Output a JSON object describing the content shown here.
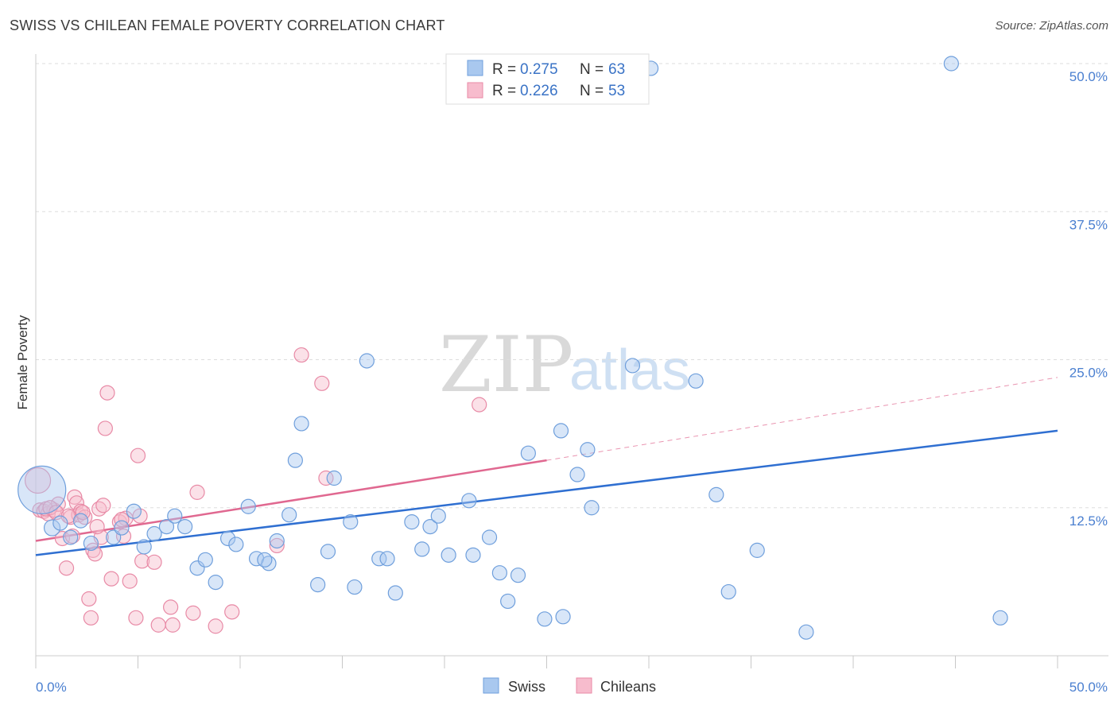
{
  "title": "SWISS VS CHILEAN FEMALE POVERTY CORRELATION CHART",
  "source": "Source: ZipAtlas.com",
  "watermark": {
    "zip": "ZIP",
    "atlas": "atlas"
  },
  "colors": {
    "swiss_fill": "#a9c8ef",
    "swiss_stroke": "#6f9fdc",
    "swiss_line": "#2f6fd1",
    "chilean_fill": "#f7bccd",
    "chilean_stroke": "#e88aa6",
    "chilean_line": "#e06890",
    "tick_label": "#4a7fd0",
    "grid": "#dddddd"
  },
  "legend": {
    "rows": [
      {
        "r_label": "R =",
        "r_value": "0.275",
        "n_label": "N =",
        "n_value": "63"
      },
      {
        "r_label": "R =",
        "r_value": "0.226",
        "n_label": "N =",
        "n_value": "53"
      }
    ],
    "bottom": [
      "Swiss",
      "Chileans"
    ]
  },
  "chart_data": {
    "type": "scatter",
    "title": "SWISS VS CHILEAN FEMALE POVERTY CORRELATION CHART",
    "xlabel": "",
    "ylabel": "Female Poverty",
    "xlim": [
      0,
      50
    ],
    "ylim": [
      0,
      50
    ],
    "x_tick_labels": [
      "0.0%",
      "50.0%"
    ],
    "y_ticks": [
      12.5,
      25.0,
      37.5,
      50.0
    ],
    "y_tick_labels": [
      "12.5%",
      "25.0%",
      "37.5%",
      "50.0%"
    ],
    "grid": true,
    "legend_position": "top-center",
    "series": [
      {
        "name": "Swiss",
        "r": 0.275,
        "n": 63,
        "trend": {
          "x0": 0,
          "y0": 8.5,
          "x1": 50,
          "y1": 19.0
        },
        "points": [
          [
            0.3,
            14.0,
            30
          ],
          [
            0.8,
            10.8,
            10
          ],
          [
            1.2,
            11.2,
            9
          ],
          [
            1.7,
            10.0,
            9
          ],
          [
            2.2,
            11.4,
            9
          ],
          [
            2.7,
            9.5,
            9
          ],
          [
            3.8,
            10.0,
            9
          ],
          [
            4.2,
            10.8,
            9
          ],
          [
            4.8,
            12.2,
            9
          ],
          [
            5.3,
            9.2,
            9
          ],
          [
            5.8,
            10.3,
            9
          ],
          [
            6.4,
            10.9,
            9
          ],
          [
            6.8,
            11.8,
            9
          ],
          [
            7.3,
            10.9,
            9
          ],
          [
            7.9,
            7.4,
            9
          ],
          [
            8.3,
            8.1,
            9
          ],
          [
            8.8,
            6.2,
            9
          ],
          [
            9.4,
            9.9,
            9
          ],
          [
            9.8,
            9.4,
            9
          ],
          [
            10.4,
            12.6,
            9
          ],
          [
            10.8,
            8.2,
            9
          ],
          [
            11.4,
            7.8,
            9
          ],
          [
            11.8,
            9.7,
            9
          ],
          [
            12.4,
            11.9,
            9
          ],
          [
            13.0,
            19.6,
            9
          ],
          [
            12.7,
            16.5,
            9
          ],
          [
            13.8,
            6.0,
            9
          ],
          [
            14.3,
            8.8,
            9
          ],
          [
            14.6,
            15.0,
            9
          ],
          [
            15.4,
            11.3,
            9
          ],
          [
            15.6,
            5.8,
            9
          ],
          [
            16.2,
            24.9,
            9
          ],
          [
            16.8,
            8.2,
            9
          ],
          [
            17.2,
            8.2,
            9
          ],
          [
            17.6,
            5.3,
            9
          ],
          [
            18.4,
            11.3,
            9
          ],
          [
            18.9,
            9.0,
            9
          ],
          [
            19.3,
            10.9,
            9
          ],
          [
            19.7,
            11.8,
            9
          ],
          [
            20.2,
            8.5,
            9
          ],
          [
            21.2,
            13.1,
            9
          ],
          [
            21.4,
            8.5,
            9
          ],
          [
            22.2,
            10.0,
            9
          ],
          [
            22.7,
            7.0,
            9
          ],
          [
            23.1,
            4.6,
            9
          ],
          [
            23.6,
            6.8,
            9
          ],
          [
            24.1,
            17.1,
            9
          ],
          [
            24.9,
            3.1,
            9
          ],
          [
            25.7,
            19.0,
            9
          ],
          [
            25.8,
            3.3,
            9
          ],
          [
            26.5,
            15.3,
            9
          ],
          [
            27.0,
            17.4,
            9
          ],
          [
            27.2,
            12.5,
            9
          ],
          [
            29.2,
            24.5,
            9
          ],
          [
            30.1,
            49.6,
            9
          ],
          [
            32.3,
            23.2,
            9
          ],
          [
            33.3,
            13.6,
            9
          ],
          [
            33.9,
            5.4,
            9
          ],
          [
            35.3,
            8.9,
            9
          ],
          [
            37.7,
            2.0,
            9
          ],
          [
            44.8,
            50.0,
            9
          ],
          [
            47.2,
            3.2,
            9
          ],
          [
            11.2,
            8.1,
            9
          ]
        ]
      },
      {
        "name": "Chileans",
        "r": 0.226,
        "n": 53,
        "trend": {
          "x0": 0,
          "y0": 9.7,
          "x1": 25,
          "y1": 16.5,
          "dash_x1": 50,
          "dash_y1": 23.5
        },
        "points": [
          [
            0.1,
            14.8,
            16
          ],
          [
            0.2,
            12.3,
            9
          ],
          [
            0.4,
            12.2,
            9
          ],
          [
            0.6,
            12.0,
            9
          ],
          [
            0.9,
            12.3,
            9
          ],
          [
            1.1,
            12.8,
            9
          ],
          [
            1.3,
            9.9,
            9
          ],
          [
            1.5,
            7.4,
            9
          ],
          [
            1.7,
            11.7,
            9
          ],
          [
            1.8,
            10.1,
            9
          ],
          [
            1.9,
            13.4,
            9
          ],
          [
            2.0,
            12.9,
            9
          ],
          [
            2.1,
            11.9,
            9
          ],
          [
            2.2,
            12.2,
            9
          ],
          [
            2.4,
            11.7,
            9
          ],
          [
            2.6,
            4.8,
            9
          ],
          [
            2.7,
            3.2,
            9
          ],
          [
            2.8,
            8.9,
            9
          ],
          [
            2.9,
            8.6,
            9
          ],
          [
            3.1,
            12.4,
            9
          ],
          [
            3.2,
            10.0,
            9
          ],
          [
            3.3,
            12.7,
            9
          ],
          [
            3.4,
            19.2,
            9
          ],
          [
            3.5,
            22.2,
            9
          ],
          [
            3.7,
            6.5,
            9
          ],
          [
            4.1,
            11.3,
            9
          ],
          [
            4.3,
            10.1,
            9
          ],
          [
            4.4,
            11.6,
            9
          ],
          [
            4.6,
            6.3,
            9
          ],
          [
            4.9,
            3.2,
            9
          ],
          [
            5.0,
            16.9,
            9
          ],
          [
            5.1,
            11.8,
            9
          ],
          [
            5.2,
            8.0,
            9
          ],
          [
            5.8,
            7.9,
            9
          ],
          [
            6.0,
            2.6,
            9
          ],
          [
            6.6,
            4.1,
            9
          ],
          [
            6.7,
            2.6,
            9
          ],
          [
            7.7,
            3.6,
            9
          ],
          [
            7.9,
            13.8,
            9
          ],
          [
            8.8,
            2.5,
            9
          ],
          [
            9.6,
            3.7,
            9
          ],
          [
            11.8,
            9.3,
            9
          ],
          [
            13.0,
            25.4,
            9
          ],
          [
            14.0,
            23.0,
            9
          ],
          [
            14.2,
            15.0,
            9
          ],
          [
            21.7,
            21.2,
            9
          ],
          [
            0.5,
            12.4,
            9
          ],
          [
            0.7,
            12.5,
            9
          ],
          [
            1.0,
            12.1,
            9
          ],
          [
            1.6,
            11.8,
            9
          ],
          [
            2.3,
            12.1,
            9
          ],
          [
            3.0,
            10.9,
            9
          ],
          [
            4.2,
            11.5,
            9
          ]
        ]
      }
    ]
  }
}
